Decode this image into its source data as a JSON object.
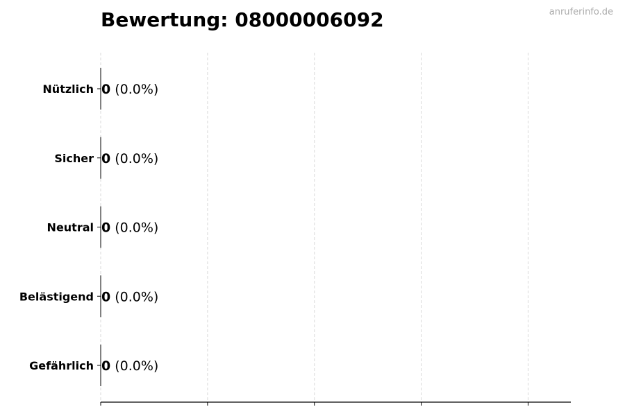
{
  "chart_data": {
    "type": "bar",
    "orientation": "horizontal",
    "title": "Bewertung: 08000006092",
    "categories": [
      "Nützlich",
      "Sicher",
      "Neutral",
      "Belästigend",
      "Gefährlich"
    ],
    "values": [
      0,
      0,
      0,
      0,
      0
    ],
    "data_labels": [
      "0",
      "0",
      "0",
      "0",
      "0"
    ],
    "percent_labels": [
      "(0.0%)",
      "(0.0%)",
      "(0.0%)",
      "(0.0%)",
      "(0.0%)"
    ],
    "xlabel": "",
    "ylabel": "",
    "xlim": [
      0,
      4.4
    ],
    "xticks": [
      0,
      1,
      2,
      3,
      4
    ],
    "xtick_labels_shown": false,
    "grid": "vertical dashed",
    "legend": "none",
    "colors": {
      "grid": "#d9d9d9",
      "axis": "#000000",
      "bar_edge": "#000000"
    }
  },
  "watermark": "anruferinfo.de"
}
